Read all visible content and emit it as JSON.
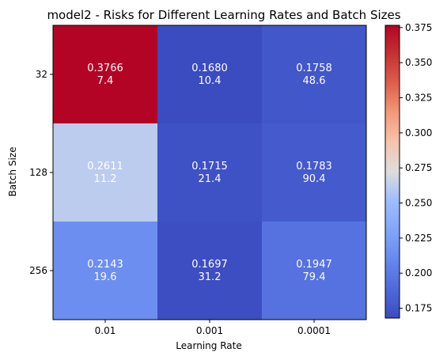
{
  "chart_data": {
    "type": "heatmap",
    "title": "model2 - Risks for Different Learning Rates and Batch Sizes",
    "xlabel": "Learning Rate",
    "ylabel": "Batch Size",
    "x_categories": [
      "0.01",
      "0.001",
      "0.0001"
    ],
    "y_categories": [
      "32",
      "128",
      "256"
    ],
    "cells": [
      [
        {
          "risk": "0.3766",
          "second": "7.4"
        },
        {
          "risk": "0.1680",
          "second": "10.4"
        },
        {
          "risk": "0.1758",
          "second": "48.6"
        }
      ],
      [
        {
          "risk": "0.2611",
          "second": "11.2"
        },
        {
          "risk": "0.1715",
          "second": "21.4"
        },
        {
          "risk": "0.1783",
          "second": "90.4"
        }
      ],
      [
        {
          "risk": "0.2143",
          "second": "19.6"
        },
        {
          "risk": "0.1697",
          "second": "31.2"
        },
        {
          "risk": "0.1947",
          "second": "79.4"
        }
      ]
    ],
    "colormap": "coolwarm",
    "colorbar": {
      "vmin": 0.168,
      "vmax": 0.3766,
      "ticks": [
        "0.175",
        "0.200",
        "0.225",
        "0.250",
        "0.275",
        "0.300",
        "0.325",
        "0.350",
        "0.375"
      ]
    },
    "grid": false
  }
}
